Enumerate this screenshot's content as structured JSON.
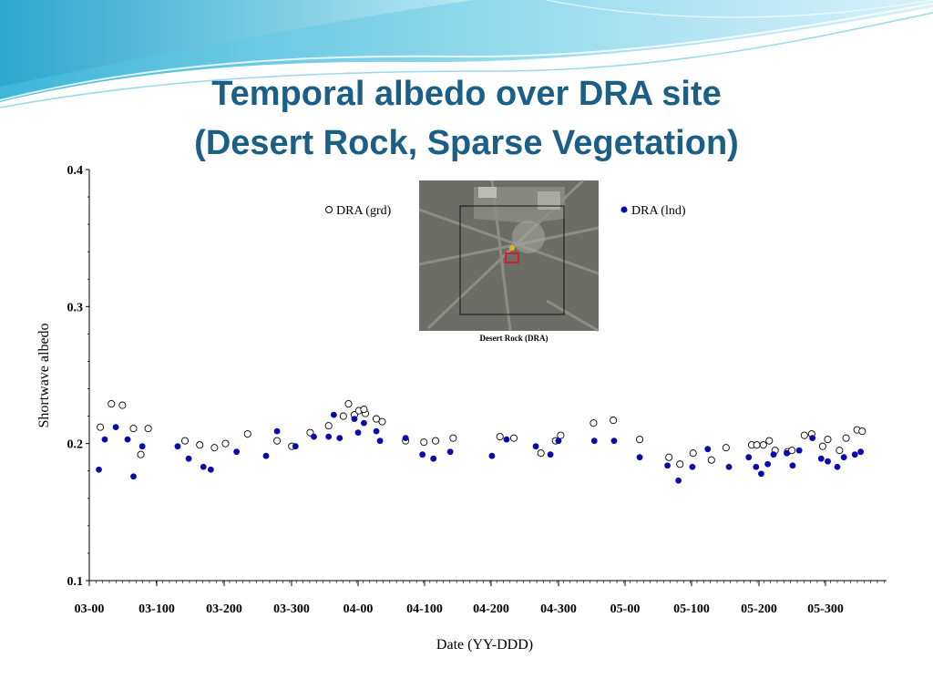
{
  "slide": {
    "title_line1": "Temporal albedo over DRA site",
    "title_line2": "(Desert Rock, Sparse Vegetation)"
  },
  "inset": {
    "caption": "Desert Rock (DRA)"
  },
  "colors": {
    "title": "#1b5f86",
    "lnd_marker": "#0a0aaa",
    "grd_marker": "#ffffff"
  },
  "chart_data": {
    "type": "scatter",
    "title": "",
    "xlabel": "Date (YY-DDD)",
    "ylabel": "Shortwave albedo",
    "x_ticks": [
      "03-00",
      "03-100",
      "03-200",
      "03-300",
      "04-00",
      "04-100",
      "04-200",
      "04-300",
      "05-00",
      "05-100",
      "05-200",
      "05-300"
    ],
    "ylim": [
      0.1,
      0.4
    ],
    "y_ticks": [
      "0.1",
      "0.2",
      "0.3",
      "0.4"
    ],
    "grid": false,
    "legend_placement": "top",
    "series": [
      {
        "name": "DRA (grd)",
        "marker": "open-circle",
        "points": [
          [
            "03-15",
            0.212
          ],
          [
            "03-30",
            0.229
          ],
          [
            "03-45",
            0.228
          ],
          [
            "03-60",
            0.211
          ],
          [
            "03-70",
            0.192
          ],
          [
            "03-80",
            0.211
          ],
          [
            "03-130",
            0.202
          ],
          [
            "03-150",
            0.199
          ],
          [
            "03-170",
            0.197
          ],
          [
            "03-185",
            0.2
          ],
          [
            "03-215",
            0.207
          ],
          [
            "03-255",
            0.202
          ],
          [
            "03-275",
            0.198
          ],
          [
            "03-300",
            0.208
          ],
          [
            "03-325",
            0.213
          ],
          [
            "03-345",
            0.22
          ],
          [
            "03-352",
            0.229
          ],
          [
            "03-360",
            0.221
          ],
          [
            "04-10",
            0.222
          ],
          [
            "04-01",
            0.224
          ],
          [
            "04-08",
            0.225
          ],
          [
            "04-25",
            0.218
          ],
          [
            "04-33",
            0.216
          ],
          [
            "04-65",
            0.202
          ],
          [
            "04-90",
            0.201
          ],
          [
            "04-106",
            0.202
          ],
          [
            "04-130",
            0.204
          ],
          [
            "04-194",
            0.205
          ],
          [
            "04-213",
            0.204
          ],
          [
            "04-250",
            0.193
          ],
          [
            "04-270",
            0.202
          ],
          [
            "04-277",
            0.206
          ],
          [
            "04-322",
            0.215
          ],
          [
            "04-349",
            0.217
          ],
          [
            "05-20",
            0.203
          ],
          [
            "05-60",
            0.19
          ],
          [
            "05-75",
            0.185
          ],
          [
            "05-93",
            0.193
          ],
          [
            "05-118",
            0.188
          ],
          [
            "05-138",
            0.197
          ],
          [
            "05-173",
            0.199
          ],
          [
            "05-180",
            0.199
          ],
          [
            "05-189",
            0.199
          ],
          [
            "05-197",
            0.202
          ],
          [
            "05-205",
            0.195
          ],
          [
            "05-222",
            0.194
          ],
          [
            "05-228",
            0.195
          ],
          [
            "05-245",
            0.206
          ],
          [
            "05-255",
            0.207
          ],
          [
            "05-270",
            0.198
          ],
          [
            "05-277",
            0.203
          ],
          [
            "05-293",
            0.195
          ],
          [
            "05-302",
            0.204
          ],
          [
            "05-317",
            0.21
          ],
          [
            "05-324",
            0.209
          ]
        ]
      },
      {
        "name": "DRA (lnd)",
        "marker": "filled-circle",
        "points": [
          [
            "03-13",
            0.181
          ],
          [
            "03-21",
            0.203
          ],
          [
            "03-36",
            0.212
          ],
          [
            "03-52",
            0.203
          ],
          [
            "03-60",
            0.176
          ],
          [
            "03-72",
            0.198
          ],
          [
            "03-120",
            0.198
          ],
          [
            "03-135",
            0.189
          ],
          [
            "03-155",
            0.183
          ],
          [
            "03-165",
            0.181
          ],
          [
            "03-200",
            0.194
          ],
          [
            "03-240",
            0.191
          ],
          [
            "03-255",
            0.209
          ],
          [
            "03-280",
            0.198
          ],
          [
            "03-305",
            0.205
          ],
          [
            "03-325",
            0.205
          ],
          [
            "03-332",
            0.221
          ],
          [
            "03-340",
            0.204
          ],
          [
            "03-360",
            0.218
          ],
          [
            "04-00",
            0.208
          ],
          [
            "04-08",
            0.215
          ],
          [
            "04-25",
            0.209
          ],
          [
            "04-30",
            0.202
          ],
          [
            "04-65",
            0.204
          ],
          [
            "04-88",
            0.192
          ],
          [
            "04-103",
            0.189
          ],
          [
            "04-126",
            0.194
          ],
          [
            "04-183",
            0.191
          ],
          [
            "04-203",
            0.203
          ],
          [
            "04-243",
            0.198
          ],
          [
            "04-263",
            0.192
          ],
          [
            "04-274",
            0.202
          ],
          [
            "04-323",
            0.202
          ],
          [
            "04-350",
            0.202
          ],
          [
            "05-20",
            0.19
          ],
          [
            "05-58",
            0.184
          ],
          [
            "05-73",
            0.173
          ],
          [
            "05-92",
            0.183
          ],
          [
            "05-113",
            0.196
          ],
          [
            "05-142",
            0.183
          ],
          [
            "05-169",
            0.19
          ],
          [
            "05-179",
            0.183
          ],
          [
            "05-186",
            0.178
          ],
          [
            "05-195",
            0.185
          ],
          [
            "05-203",
            0.192
          ],
          [
            "05-221",
            0.193
          ],
          [
            "05-229",
            0.184
          ],
          [
            "05-238",
            0.195
          ],
          [
            "05-256",
            0.204
          ],
          [
            "05-268",
            0.189
          ],
          [
            "05-277",
            0.187
          ],
          [
            "05-290",
            0.183
          ],
          [
            "05-299",
            0.19
          ],
          [
            "05-314",
            0.192
          ],
          [
            "05-322",
            0.194
          ]
        ]
      }
    ]
  }
}
